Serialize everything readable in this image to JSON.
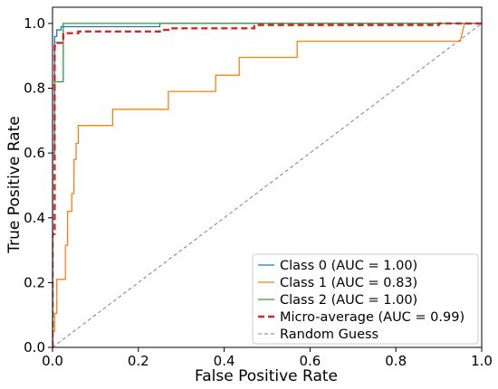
{
  "chart_data": {
    "type": "line",
    "title": "",
    "xlabel": "False Positive Rate",
    "ylabel": "True Positive Rate",
    "xlim": [
      0.0,
      1.0
    ],
    "ylim": [
      0.0,
      1.05
    ],
    "xticks": [
      "0.0",
      "0.2",
      "0.4",
      "0.6",
      "0.8",
      "1.0"
    ],
    "yticks": [
      "0.0",
      "0.2",
      "0.4",
      "0.6",
      "0.8",
      "1.0"
    ],
    "grid": false,
    "legend_position": "lower right",
    "series": [
      {
        "name": "Class 0 (AUC = 1.00)",
        "color": "#1f77b4",
        "style": "solid",
        "x": [
          0.0,
          0.0,
          0.005,
          0.005,
          0.01,
          0.01,
          0.02,
          0.02,
          0.25,
          0.25,
          1.0
        ],
        "y": [
          0.0,
          0.6,
          0.6,
          0.96,
          0.96,
          0.98,
          0.98,
          0.99,
          0.99,
          1.0,
          1.0
        ]
      },
      {
        "name": "Class 1 (AUC = 0.83)",
        "color": "#ff7f0e",
        "style": "solid",
        "x": [
          0.0,
          0.0,
          0.005,
          0.005,
          0.01,
          0.01,
          0.02,
          0.02,
          0.03,
          0.03,
          0.035,
          0.035,
          0.045,
          0.045,
          0.05,
          0.05,
          0.055,
          0.055,
          0.06,
          0.06,
          0.14,
          0.14,
          0.27,
          0.27,
          0.38,
          0.38,
          0.435,
          0.435,
          0.57,
          0.57,
          0.95,
          0.96,
          0.96,
          1.0
        ],
        "y": [
          0.0,
          0.05,
          0.05,
          0.105,
          0.105,
          0.21,
          0.21,
          0.21,
          0.21,
          0.315,
          0.315,
          0.42,
          0.42,
          0.475,
          0.475,
          0.58,
          0.58,
          0.63,
          0.63,
          0.685,
          0.685,
          0.735,
          0.735,
          0.79,
          0.79,
          0.84,
          0.84,
          0.895,
          0.895,
          0.945,
          0.945,
          1.0,
          1.0,
          1.0
        ]
      },
      {
        "name": "Class 2 (AUC = 1.00)",
        "color": "#2ca02c",
        "style": "solid",
        "x": [
          0.0,
          0.0,
          0.005,
          0.005,
          0.025,
          0.025,
          1.0
        ],
        "y": [
          0.0,
          0.81,
          0.81,
          0.82,
          0.82,
          1.0,
          1.0
        ]
      },
      {
        "name": "Micro-average (AUC = 0.99)",
        "color": "#d62728",
        "style": "dashed-thick",
        "x": [
          0.0,
          0.0,
          0.005,
          0.005,
          0.01,
          0.01,
          0.025,
          0.025,
          0.06,
          0.06,
          0.25,
          0.25,
          0.27,
          0.27,
          0.47,
          0.47,
          0.9,
          0.9,
          1.0
        ],
        "y": [
          0.0,
          0.35,
          0.35,
          0.93,
          0.93,
          0.94,
          0.94,
          0.97,
          0.97,
          0.975,
          0.975,
          0.98,
          0.98,
          0.985,
          0.985,
          0.995,
          0.995,
          1.0,
          1.0
        ]
      },
      {
        "name": "Random Guess",
        "color": "#808080",
        "style": "dashed-thin",
        "x": [
          0.0,
          1.0
        ],
        "y": [
          0.0,
          1.0
        ]
      }
    ]
  }
}
